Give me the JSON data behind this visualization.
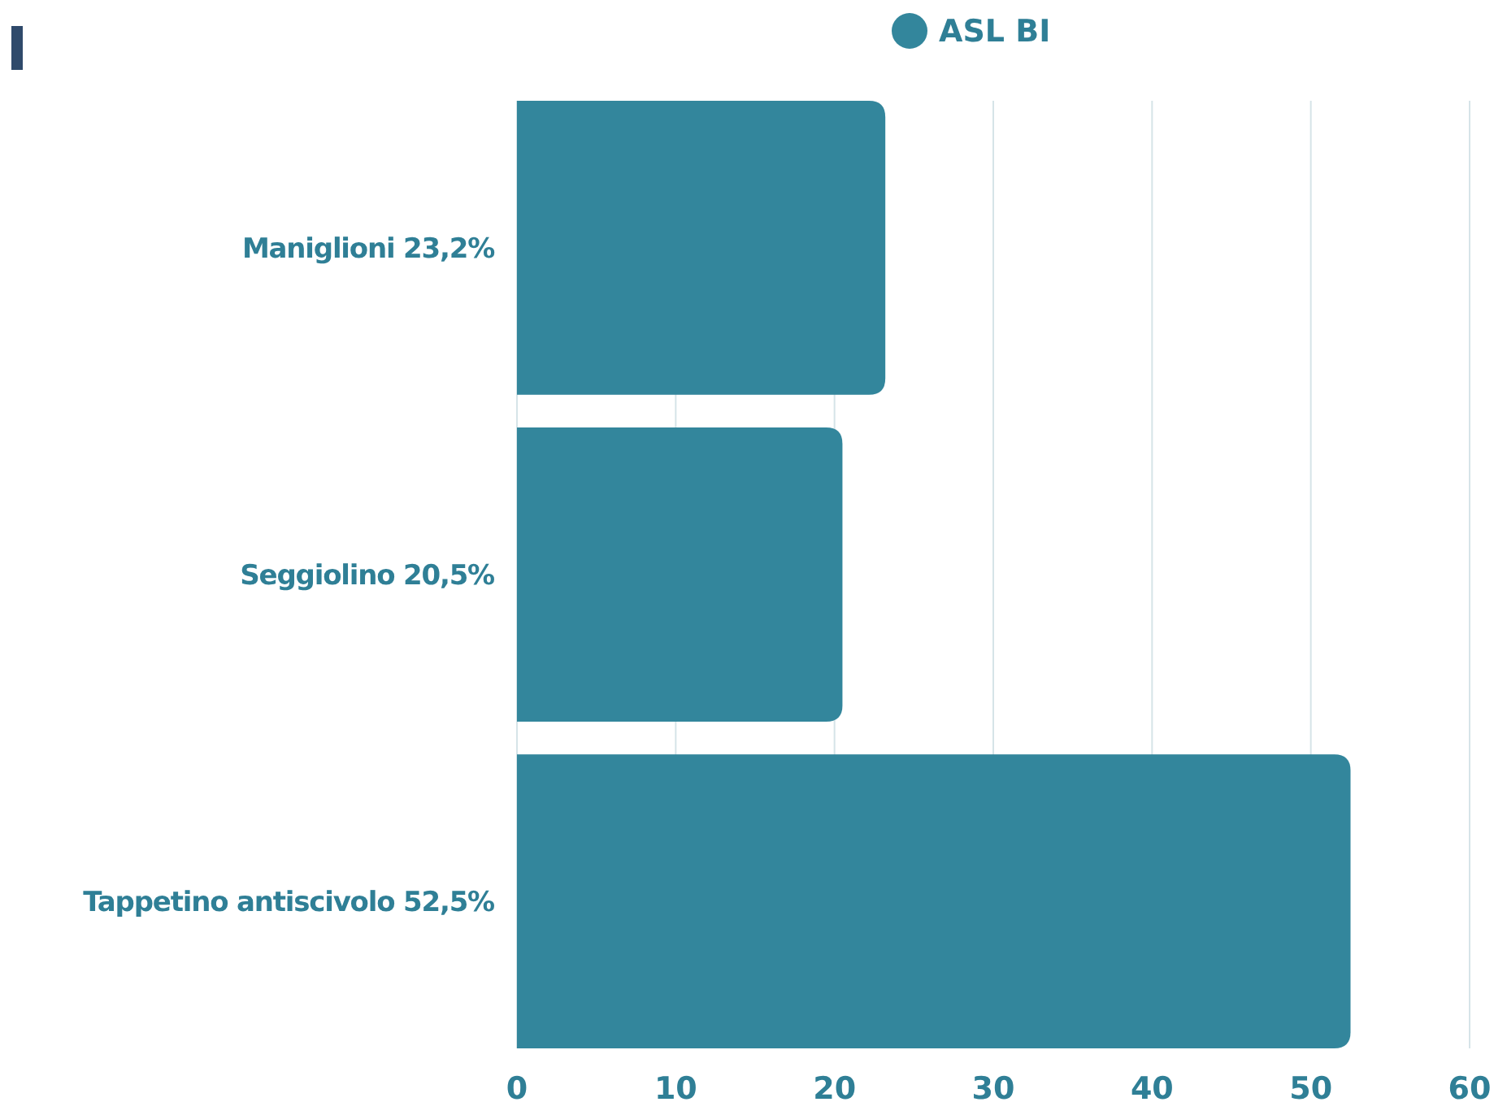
{
  "chart_data": {
    "type": "bar",
    "orientation": "horizontal",
    "categories": [
      "Maniglioni 23,2%",
      "Seggiolino 20,5%",
      "Tappetino antiscivolo 52,5%"
    ],
    "series": [
      {
        "name": "ASL BI",
        "color": "#33869c",
        "values": [
          23.2,
          20.5,
          52.5
        ]
      }
    ],
    "xlim": [
      0,
      60
    ],
    "xticks": [
      0,
      10,
      20,
      30,
      40,
      50,
      60
    ],
    "grid": "x",
    "legend": "top"
  }
}
